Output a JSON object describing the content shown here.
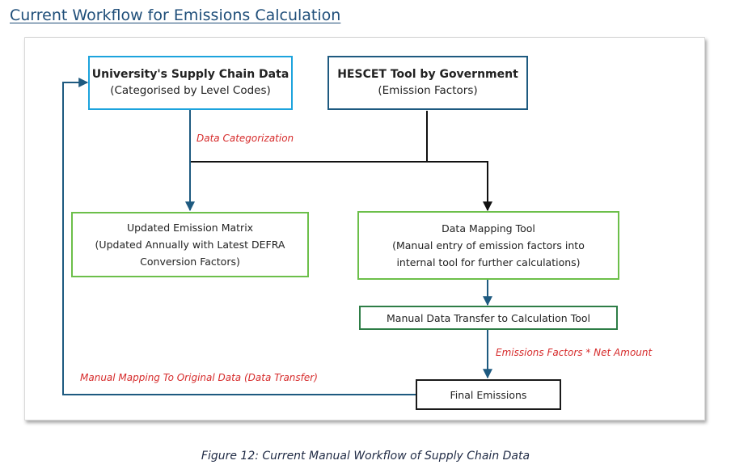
{
  "page": {
    "title": "Current Workflow for Emissions Calculation"
  },
  "diagram": {
    "nodes": {
      "supply_chain": {
        "title": "University's Supply Chain Data",
        "subtitle": "(Categorised by Level Codes)"
      },
      "hescet": {
        "title": "HESCET Tool by Government",
        "subtitle": "(Emission Factors)"
      },
      "emission_matrix": {
        "line1": "Updated Emission Matrix",
        "line2": "(Updated Annually with Latest DEFRA",
        "line3": "Conversion Factors)"
      },
      "data_mapping": {
        "line1": "Data Mapping Tool",
        "line2": "(Manual entry of emission factors into",
        "line3": "internal tool for further calculations)"
      },
      "manual_transfer": {
        "label": "Manual Data Transfer to Calculation Tool"
      },
      "final": {
        "label": "Final Emissions"
      }
    },
    "edges": {
      "data_categorization": "Data Categorization",
      "emissions_factors": "Emissions Factors * Net Amount",
      "manual_mapping": "Manual Mapping To Original Data (Data Transfer)"
    },
    "colors": {
      "source_box_border": "#1ca3dd",
      "government_box_border": "#1e5a80",
      "process_box_border": "#6cbf4a",
      "transfer_box_border": "#2e7d46",
      "connector": "#1e5a80",
      "edge_label": "#d62b2b"
    }
  },
  "caption": "Figure 12: Current Manual Workflow of Supply Chain Data"
}
